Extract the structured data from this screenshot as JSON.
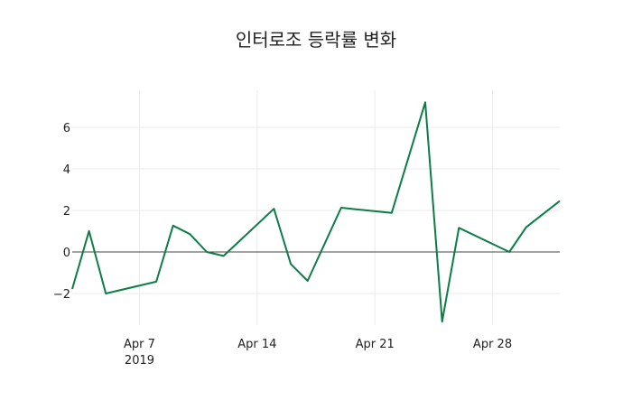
{
  "chart_data": {
    "type": "line",
    "title": "인터로조 등락률 변화",
    "xlabel": "",
    "ylabel": "",
    "x": [
      "2019-04-03",
      "2019-04-04",
      "2019-04-05",
      "2019-04-08",
      "2019-04-09",
      "2019-04-10",
      "2019-04-11",
      "2019-04-12",
      "2019-04-15",
      "2019-04-16",
      "2019-04-17",
      "2019-04-19",
      "2019-04-22",
      "2019-04-24",
      "2019-04-25",
      "2019-04-26",
      "2019-04-29",
      "2019-04-30",
      "2019-05-02"
    ],
    "series": [
      {
        "name": "등락률",
        "color": "#0b7d45",
        "values": [
          -1.78,
          1.01,
          -2.0,
          -1.43,
          1.27,
          0.86,
          0.0,
          -0.19,
          2.08,
          -0.58,
          -1.39,
          2.13,
          1.88,
          7.2,
          -3.35,
          1.16,
          0.0,
          1.19,
          2.45
        ]
      }
    ],
    "xlim": [
      "2019-04-03",
      "2019-05-02"
    ],
    "ylim": [
      -3.52,
      7.78
    ],
    "x_ticks": [
      {
        "date": "2019-04-07",
        "label": "Apr 7",
        "sublabel": "2019"
      },
      {
        "date": "2019-04-14",
        "label": "Apr 14",
        "sublabel": ""
      },
      {
        "date": "2019-04-21",
        "label": "Apr 21",
        "sublabel": ""
      },
      {
        "date": "2019-04-28",
        "label": "Apr 28",
        "sublabel": ""
      }
    ],
    "y_ticks": [
      {
        "value": -2,
        "label": "−2"
      },
      {
        "value": 0,
        "label": "0"
      },
      {
        "value": 2,
        "label": "2"
      },
      {
        "value": 4,
        "label": "4"
      },
      {
        "value": 6,
        "label": "6"
      }
    ],
    "grid": true,
    "zero_line": true,
    "legend": "none"
  },
  "style": {
    "grid_color": "#ebebeb",
    "zero_line_color": "#444444",
    "background": "#ffffff"
  }
}
